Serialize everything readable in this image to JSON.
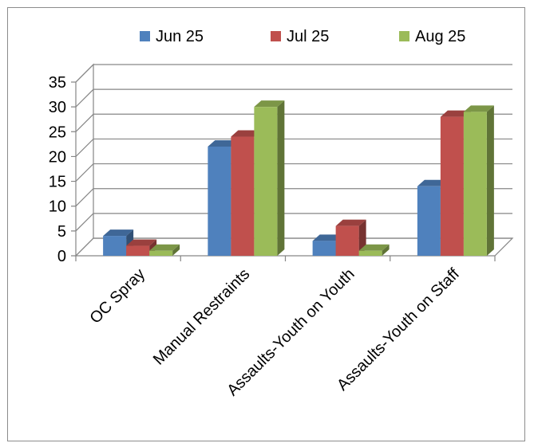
{
  "chart_data": {
    "type": "bar",
    "style": "3d-clustered-column",
    "categories": [
      "OC Spray",
      "Manual Restraints",
      "Assaults-Youth on Youth",
      "Assaults-Youth on Staff"
    ],
    "series": [
      {
        "name": "Jun 25",
        "color": "#4f81bd",
        "values": [
          4,
          22,
          3,
          14
        ]
      },
      {
        "name": "Jul 25",
        "color": "#c0504d",
        "values": [
          2,
          24,
          6,
          28
        ]
      },
      {
        "name": "Aug 25",
        "color": "#9bbb59",
        "values": [
          1,
          30,
          1,
          29
        ]
      }
    ],
    "yticks": [
      0,
      5,
      10,
      15,
      20,
      25,
      30,
      35
    ],
    "ylim": [
      0,
      35
    ],
    "grid": true,
    "legend_position": "top"
  }
}
